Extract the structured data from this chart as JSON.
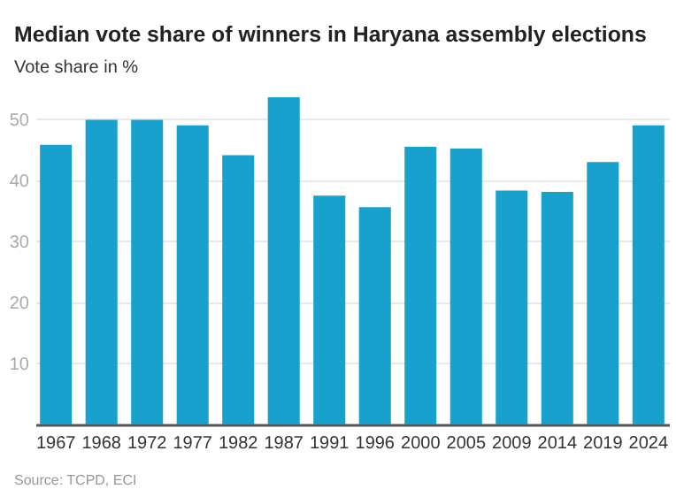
{
  "chart_data": {
    "type": "bar",
    "title": "Median vote share of winners in Haryana assembly elections",
    "subtitle": "Vote share in %",
    "categories": [
      "1967",
      "1968",
      "1972",
      "1977",
      "1982",
      "1987",
      "1991",
      "1996",
      "2000",
      "2005",
      "2009",
      "2014",
      "2019",
      "2024"
    ],
    "values": [
      45.8,
      49.9,
      49.9,
      49.0,
      44.1,
      53.6,
      37.5,
      35.6,
      45.5,
      45.2,
      38.3,
      38.1,
      43.0,
      49.0
    ],
    "color": "#18a1cd",
    "ylim": [
      0,
      53.6
    ],
    "yticks": [
      10,
      20,
      30,
      40,
      50
    ],
    "grid": "y",
    "annotations": [
      "Source: TCPD, ECI"
    ]
  }
}
